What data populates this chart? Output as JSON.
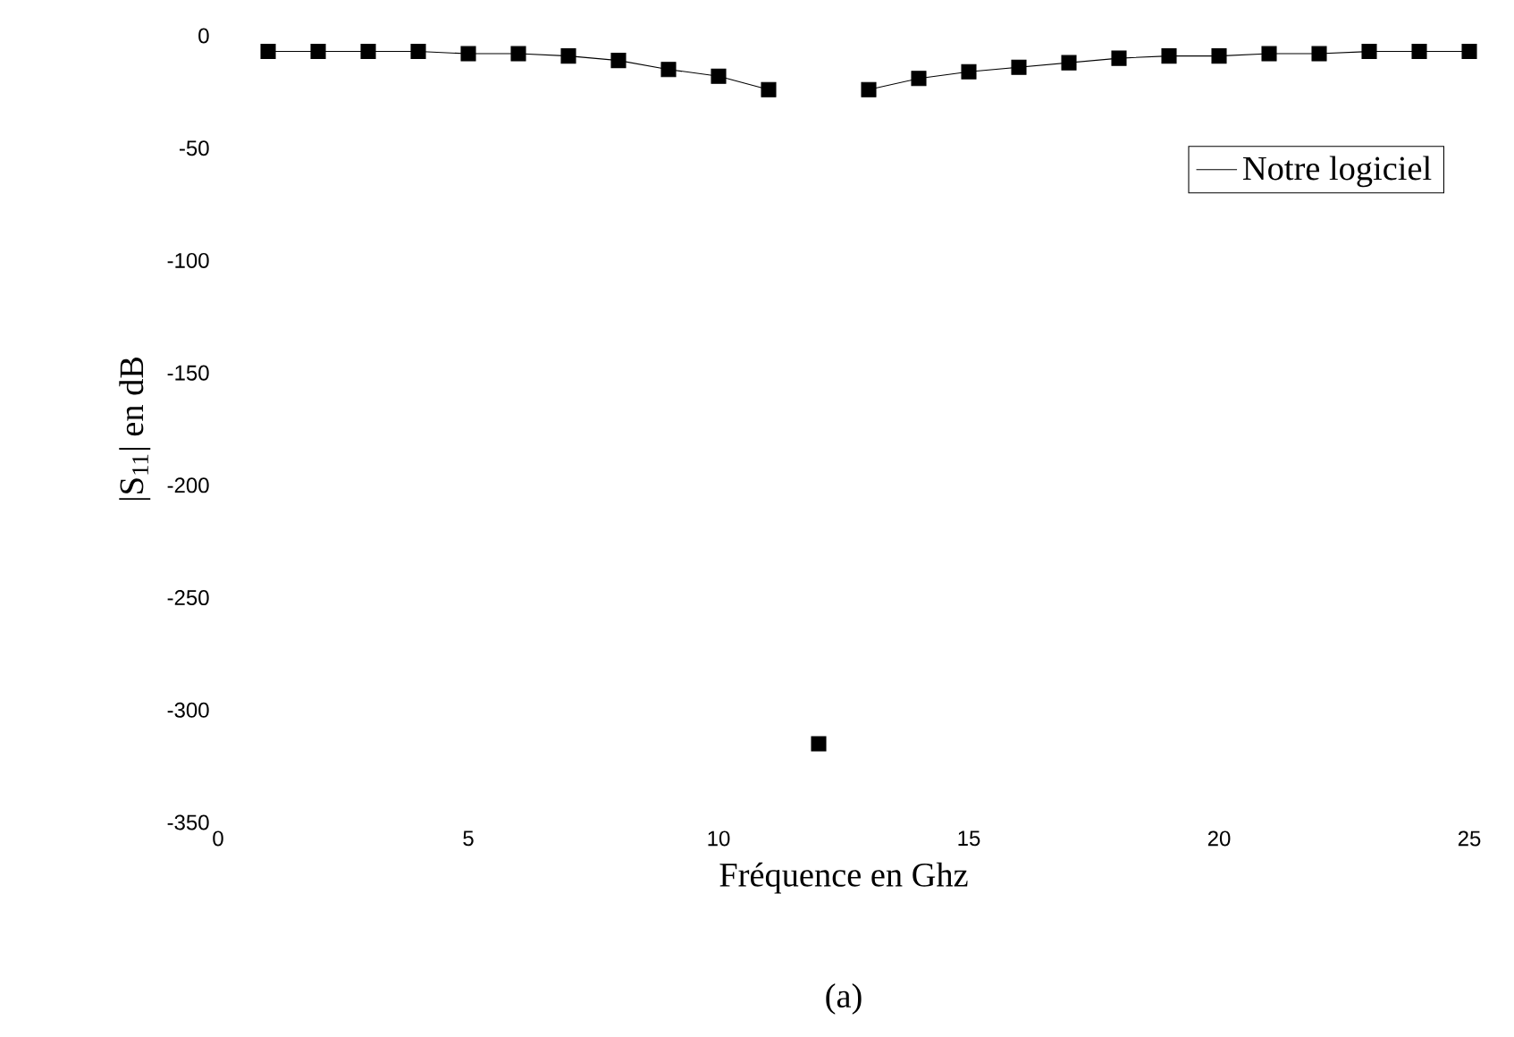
{
  "chart_data": {
    "type": "scatter",
    "xlabel": "Fréquence en Ghz",
    "ylabel": "|S$_{11}$| en dB",
    "annotations": [
      "(a)"
    ],
    "x": [
      1,
      2,
      3,
      4,
      5,
      6,
      7,
      8,
      9,
      10,
      11,
      12,
      13,
      14,
      15,
      16,
      17,
      18,
      19,
      20,
      21,
      22,
      23,
      24,
      25
    ],
    "series": [
      {
        "color": "#000000",
        "marker": "square",
        "values": [
          -7,
          -7,
          -7,
          -7,
          -8,
          -8,
          -9,
          -11,
          -15,
          -18,
          -24,
          -315,
          -24,
          -19,
          -16,
          -14,
          -12,
          -10,
          -9,
          -9,
          -8,
          -8,
          -7,
          -7,
          -7
        ]
      },
      {
        "type": "line",
        "name": "Notre logiciel",
        "color": "#000000",
        "marker": "none",
        "line_style": "solid",
        "values": [
          -7,
          -7,
          -7,
          -7,
          -8,
          -8,
          -9,
          -11,
          -15,
          -18,
          -24,
          null,
          -24,
          -19,
          -16,
          -14,
          -12,
          -10,
          -9,
          -9,
          -8,
          -8,
          -7,
          -7,
          -7
        ]
      }
    ],
    "xlim": [
      0,
      25
    ],
    "ylim": [
      -350,
      0
    ],
    "xticks": [
      0,
      5,
      10,
      15,
      20,
      25
    ],
    "yticks": [
      0,
      -50,
      -100,
      -150,
      -200,
      -250,
      -300,
      -350
    ],
    "legend": "top right"
  }
}
